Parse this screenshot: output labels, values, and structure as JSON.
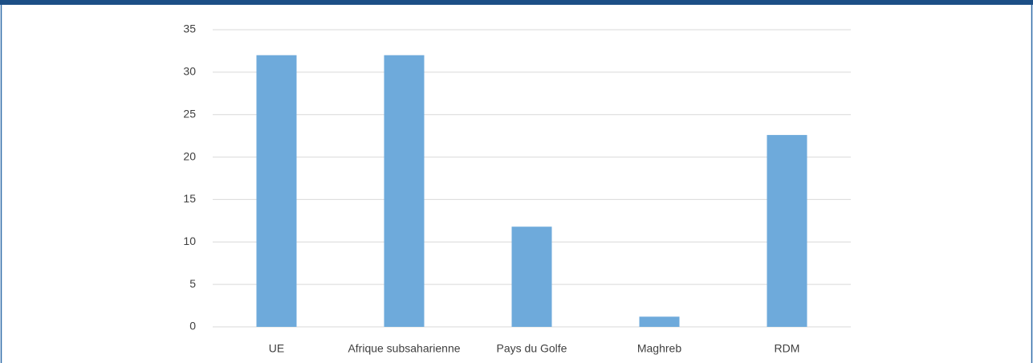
{
  "chart_data": {
    "type": "bar",
    "categories": [
      "UE",
      "Afrique subsaharienne",
      "Pays du Golfe",
      "Maghreb",
      "RDM"
    ],
    "values": [
      32,
      32,
      11.8,
      1.2,
      22.6
    ],
    "color": "#6eaadb",
    "ylim": [
      0,
      35
    ],
    "yticks": [
      0,
      5,
      10,
      15,
      20,
      25,
      30,
      35
    ],
    "grid": true
  }
}
